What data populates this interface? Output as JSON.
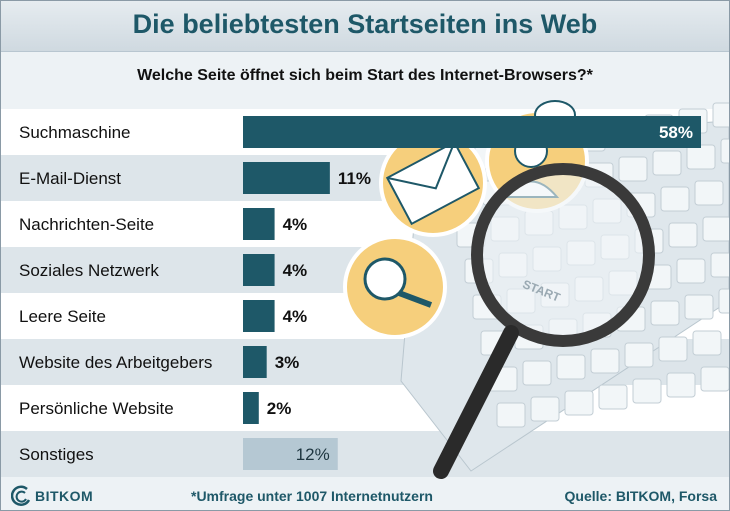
{
  "title": "Die beliebtesten Startseiten ins Web",
  "subtitle": "Welche Seite öffnet sich beim Start des Internet-Browsers?*",
  "footnote": "*Umfrage unter 1007 Internetnutzern",
  "source": "Quelle: BITKOM, Forsa",
  "logo_text": "BITKOM",
  "colors": {
    "bar": "#1e5868",
    "bar_other": "#b5c8d3",
    "title": "#1e5868",
    "circle": "#f6cf7c",
    "row_light": "#ffffff",
    "row_dark": "#dde5ea"
  },
  "icons": [
    "envelope-icon",
    "person-icon",
    "speech-bubble-icon",
    "magnifier-icon",
    "keyboard-illustration"
  ],
  "chart_data": {
    "type": "bar",
    "orientation": "horizontal",
    "title": "Die beliebtesten Startseiten ins Web",
    "subtitle": "Welche Seite öffnet sich beim Start des Internet-Browsers?*",
    "categories": [
      "Suchmaschine",
      "E-Mail-Dienst",
      "Nachrichten-Seite",
      "Soziales Netzwerk",
      "Leere Seite",
      "Website des Arbeitgebers",
      "Persönliche Website",
      "Sonstiges"
    ],
    "values": [
      58,
      11,
      4,
      4,
      4,
      3,
      2,
      12
    ],
    "labels": [
      "58%",
      "11%",
      "4%",
      "4%",
      "4%",
      "3%",
      "2%",
      "12%"
    ],
    "unit": "%",
    "xlim": [
      0,
      100
    ],
    "grid": false,
    "legend": "none"
  }
}
